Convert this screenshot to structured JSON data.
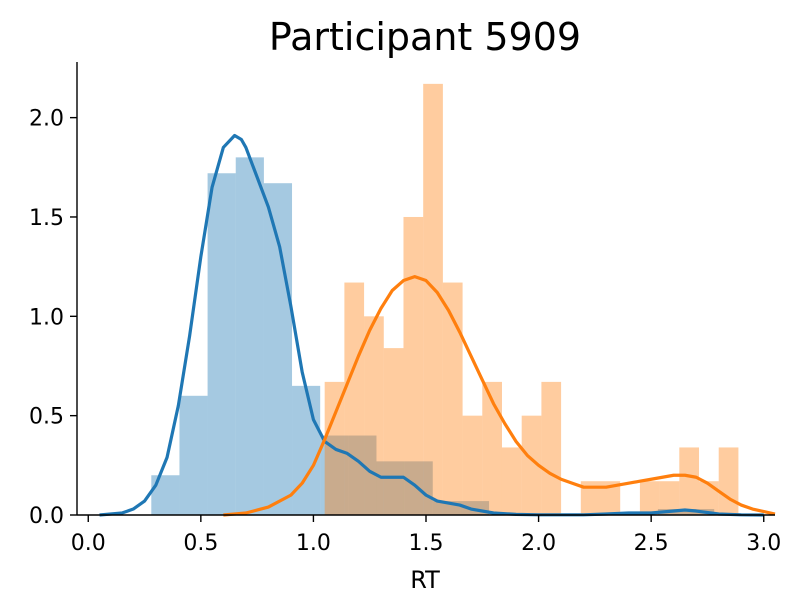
{
  "chart_data": {
    "type": "histogram-kde",
    "title": "Participant 5909",
    "xlabel": "RT",
    "ylabel": "",
    "xlim": [
      -0.05,
      3.05
    ],
    "ylim": [
      0,
      2.28
    ],
    "xticks": [
      "0.0",
      "0.5",
      "1.0",
      "1.5",
      "2.0",
      "2.5",
      "3.0"
    ],
    "yticks": [
      "0.0",
      "0.5",
      "1.0",
      "1.5",
      "2.0"
    ],
    "grid": false,
    "legend": "none",
    "series": [
      {
        "color": "#1f77b4",
        "bin_width": 0.125,
        "bars": [
          [
            0.28,
            0.2
          ],
          [
            0.405,
            0.6
          ],
          [
            0.53,
            1.72
          ],
          [
            0.655,
            1.8
          ],
          [
            0.78,
            1.67
          ],
          [
            0.905,
            0.65
          ],
          [
            1.03,
            0.4
          ],
          [
            1.155,
            0.4
          ],
          [
            1.28,
            0.27
          ],
          [
            1.405,
            0.27
          ],
          [
            1.53,
            0.07
          ],
          [
            1.655,
            0.07
          ],
          [
            2.53,
            0.03
          ],
          [
            2.655,
            0.03
          ]
        ],
        "kde": [
          [
            0.05,
            0.0
          ],
          [
            0.15,
            0.01
          ],
          [
            0.2,
            0.03
          ],
          [
            0.25,
            0.07
          ],
          [
            0.3,
            0.15
          ],
          [
            0.35,
            0.29
          ],
          [
            0.4,
            0.55
          ],
          [
            0.45,
            0.9
          ],
          [
            0.5,
            1.3
          ],
          [
            0.55,
            1.65
          ],
          [
            0.6,
            1.85
          ],
          [
            0.65,
            1.91
          ],
          [
            0.68,
            1.89
          ],
          [
            0.7,
            1.85
          ],
          [
            0.75,
            1.7
          ],
          [
            0.8,
            1.55
          ],
          [
            0.85,
            1.35
          ],
          [
            0.9,
            1.05
          ],
          [
            0.95,
            0.72
          ],
          [
            1.0,
            0.48
          ],
          [
            1.05,
            0.37
          ],
          [
            1.1,
            0.33
          ],
          [
            1.15,
            0.31
          ],
          [
            1.2,
            0.27
          ],
          [
            1.25,
            0.22
          ],
          [
            1.3,
            0.19
          ],
          [
            1.35,
            0.19
          ],
          [
            1.4,
            0.19
          ],
          [
            1.45,
            0.15
          ],
          [
            1.5,
            0.1
          ],
          [
            1.55,
            0.07
          ],
          [
            1.6,
            0.06
          ],
          [
            1.65,
            0.05
          ],
          [
            1.7,
            0.03
          ],
          [
            1.8,
            0.01
          ],
          [
            1.9,
            0.003
          ],
          [
            2.0,
            0.001
          ],
          [
            2.2,
            0.001
          ],
          [
            2.3,
            0.005
          ],
          [
            2.4,
            0.01
          ],
          [
            2.5,
            0.01
          ],
          [
            2.6,
            0.02
          ],
          [
            2.65,
            0.025
          ],
          [
            2.7,
            0.02
          ],
          [
            2.8,
            0.005
          ],
          [
            2.9,
            0.001
          ],
          [
            3.0,
            0.0
          ]
        ]
      },
      {
        "color": "#ff7f0e",
        "bin_width": 0.0875,
        "bars": [
          [
            1.05,
            0.67
          ],
          [
            1.1375,
            1.17
          ],
          [
            1.225,
            1.0
          ],
          [
            1.3125,
            0.84
          ],
          [
            1.4,
            1.5
          ],
          [
            1.4875,
            2.17
          ],
          [
            1.575,
            1.17
          ],
          [
            1.6625,
            0.5
          ],
          [
            1.75,
            0.67
          ],
          [
            1.8375,
            0.34
          ],
          [
            1.925,
            0.5
          ],
          [
            2.0125,
            0.67
          ],
          [
            2.1,
            0.0
          ],
          [
            2.1875,
            0.17
          ],
          [
            2.275,
            0.17
          ],
          [
            2.3625,
            0.0
          ],
          [
            2.45,
            0.17
          ],
          [
            2.5375,
            0.17
          ],
          [
            2.625,
            0.34
          ],
          [
            2.7125,
            0.17
          ],
          [
            2.8,
            0.34
          ]
        ],
        "kde": [
          [
            0.6,
            0.0
          ],
          [
            0.7,
            0.01
          ],
          [
            0.8,
            0.04
          ],
          [
            0.9,
            0.1
          ],
          [
            0.95,
            0.16
          ],
          [
            1.0,
            0.25
          ],
          [
            1.05,
            0.38
          ],
          [
            1.1,
            0.52
          ],
          [
            1.15,
            0.66
          ],
          [
            1.2,
            0.8
          ],
          [
            1.25,
            0.93
          ],
          [
            1.3,
            1.04
          ],
          [
            1.35,
            1.13
          ],
          [
            1.4,
            1.18
          ],
          [
            1.45,
            1.2
          ],
          [
            1.5,
            1.18
          ],
          [
            1.55,
            1.12
          ],
          [
            1.6,
            1.03
          ],
          [
            1.65,
            0.92
          ],
          [
            1.7,
            0.8
          ],
          [
            1.75,
            0.68
          ],
          [
            1.8,
            0.56
          ],
          [
            1.85,
            0.46
          ],
          [
            1.9,
            0.37
          ],
          [
            1.95,
            0.3
          ],
          [
            2.0,
            0.25
          ],
          [
            2.05,
            0.21
          ],
          [
            2.1,
            0.18
          ],
          [
            2.15,
            0.16
          ],
          [
            2.2,
            0.14
          ],
          [
            2.25,
            0.14
          ],
          [
            2.3,
            0.14
          ],
          [
            2.35,
            0.15
          ],
          [
            2.4,
            0.16
          ],
          [
            2.45,
            0.17
          ],
          [
            2.5,
            0.18
          ],
          [
            2.55,
            0.19
          ],
          [
            2.6,
            0.2
          ],
          [
            2.65,
            0.2
          ],
          [
            2.7,
            0.19
          ],
          [
            2.75,
            0.16
          ],
          [
            2.8,
            0.12
          ],
          [
            2.85,
            0.08
          ],
          [
            2.9,
            0.05
          ],
          [
            2.95,
            0.03
          ],
          [
            3.05,
            0.005
          ]
        ]
      }
    ]
  }
}
